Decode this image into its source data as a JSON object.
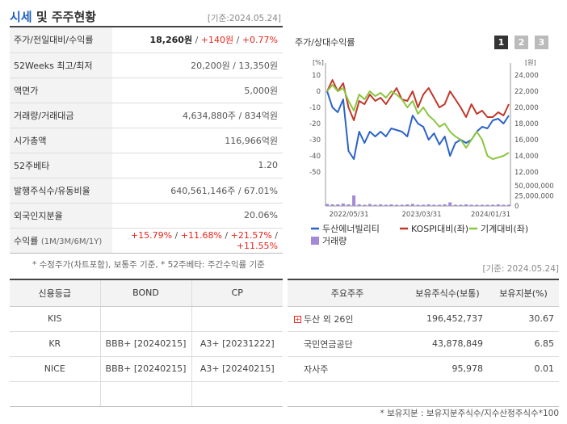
{
  "header": {
    "title_a": "시세",
    "title_b": "및 주주현황",
    "basis": "[기준:2024.05.24]"
  },
  "market": {
    "rows": [
      {
        "label": "주가/전일대비/수익률",
        "price": "18,260원",
        "sep1": " / ",
        "change": "+140원",
        "sep2": " / ",
        "rate": "+0.77%"
      },
      {
        "label": "52Weeks 최고/최저",
        "value": "20,200원 / 13,350원"
      },
      {
        "label": "액면가",
        "value": "5,000원"
      },
      {
        "label": "거래량/거래대금",
        "value": "4,634,880주 / 834억원"
      },
      {
        "label": "시가총액",
        "value": "116,966억원"
      },
      {
        "label": "52주베타",
        "value": "1.20"
      },
      {
        "label": "발행주식수/유동비율",
        "value": "640,561,146주 / 67.01%"
      },
      {
        "label": "외국인지분율",
        "value": "20.06%"
      }
    ],
    "returns": {
      "label": "수익률",
      "label_sub": "(1M/3M/6M/1Y)",
      "r1": "+15.79%",
      "r2": "+11.68%",
      "r3": "+21.57%",
      "r4": "+11.55%",
      "sep": " / "
    },
    "note": "* 수정주가(차트포함), 보통주 기준, * 52주베타: 주간수익률 기준"
  },
  "chart_panel": {
    "title": "주가/상대수익률",
    "pages": [
      "1",
      "2",
      "3"
    ]
  },
  "chart_data": {
    "type": "line",
    "title": "주가/상대수익률",
    "left_axis_unit": "[%]",
    "right_axis_unit": "[원]",
    "left_ticks": [
      "10",
      "0",
      "-10",
      "-20",
      "-30",
      "-40",
      "-50"
    ],
    "right_ticks": [
      "24,000",
      "22,000",
      "20,000",
      "18,000",
      "16,000",
      "14,000",
      "12,000"
    ],
    "volume_ticks": [
      "50,000,000",
      "25,000,000",
      "0"
    ],
    "x_labels": [
      "2022/05/31",
      "2023/03/31",
      "2024/01/31"
    ],
    "ylim_pct": [
      -50,
      10
    ],
    "ylim_price": [
      12000,
      24000
    ],
    "ylim_volume": [
      0,
      50000000
    ],
    "series": [
      {
        "name": "두산에너빌리티",
        "color": "#2b63c9",
        "values": [
          0,
          -10,
          -13,
          -5,
          -37,
          -42,
          -25,
          -32,
          -25,
          -28,
          -25,
          -28,
          -23,
          -24,
          -25,
          -28,
          -15,
          -20,
          -22,
          -30,
          -26,
          -33,
          -28,
          -40,
          -32,
          -30,
          -32,
          -30,
          -25,
          -22,
          -23,
          -18,
          -17,
          -20,
          -15
        ]
      },
      {
        "name": "KOSPI대비(좌)",
        "color": "#c0392b",
        "values": [
          0,
          7,
          0,
          5,
          -10,
          -18,
          -6,
          -8,
          -2,
          -6,
          -4,
          -8,
          -3,
          2,
          -5,
          -6,
          0,
          -10,
          -2,
          2,
          -4,
          -10,
          -8,
          0,
          -5,
          -10,
          -16,
          -8,
          -14,
          -12,
          -16,
          -16,
          -13,
          -15,
          -8
        ]
      },
      {
        "name": "기계대비(좌)",
        "color": "#8cc63f",
        "values": [
          0,
          4,
          0,
          2,
          -6,
          -12,
          -2,
          -5,
          0,
          -3,
          -1,
          -4,
          0,
          -2,
          -5,
          -10,
          -6,
          -14,
          -10,
          -15,
          -18,
          -22,
          -20,
          -25,
          -28,
          -30,
          -35,
          -30,
          -25,
          -30,
          -40,
          -42,
          -41,
          -40,
          -38
        ]
      }
    ],
    "volume_legend": "거래량",
    "volume_color": "#a48ad6",
    "volume": [
      5,
      4,
      4,
      6,
      4,
      26,
      4,
      3,
      5,
      3,
      4,
      3,
      4,
      3,
      3,
      4,
      5,
      3,
      3,
      4,
      3,
      3,
      4,
      9,
      3,
      3,
      4,
      3,
      3,
      3,
      3,
      3,
      4,
      3,
      3
    ]
  },
  "credit": {
    "headers": [
      "신용등급",
      "BOND",
      "CP"
    ],
    "rows": [
      [
        "KIS",
        "",
        ""
      ],
      [
        "KR",
        "BBB+ [20240215]",
        "A3+ [20231222]"
      ],
      [
        "NICE",
        "BBB+ [20240215]",
        "A3+ [20240215]"
      ],
      [
        "",
        "",
        ""
      ]
    ]
  },
  "holders": {
    "basis": "[기준: 2024.05.24]",
    "headers": [
      "주요주주",
      "보유주식수(보통)",
      "보유지분(%)"
    ],
    "rows": [
      {
        "name": "두산 외 26인",
        "shares": "196,452,737",
        "pct": "30.67"
      },
      {
        "name": "국민연금공단",
        "shares": "43,878,849",
        "pct": "6.85"
      },
      {
        "name": "자사주",
        "shares": "95,978",
        "pct": "0.01"
      },
      {
        "name": "",
        "shares": "",
        "pct": ""
      }
    ],
    "note": "* 보유지분 : 보유지분주식수/지수산정주식수*100"
  }
}
